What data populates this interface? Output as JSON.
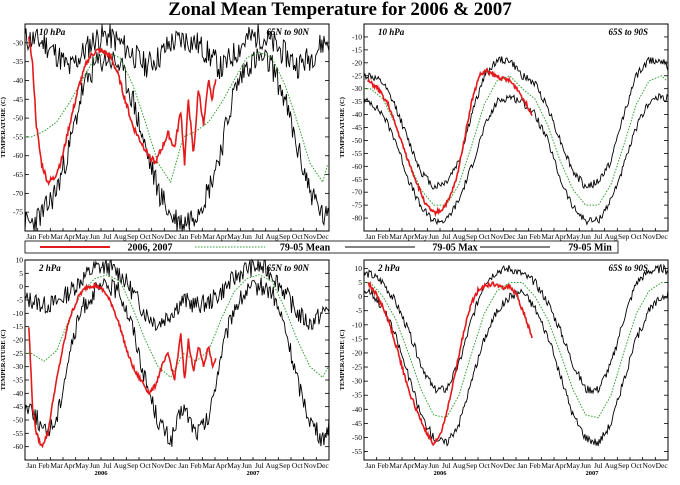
{
  "title": "Zonal Mean Temperature for 2006 & 2007",
  "colors": {
    "series_2006_2007": "#e31a1c",
    "mean": "#2ca02c",
    "max": "#000000",
    "min": "#000000"
  },
  "legend": {
    "placement": "between-rows",
    "entries": [
      {
        "key": "obs",
        "label": "2006, 2007",
        "style": "solid-thick-red"
      },
      {
        "key": "mean",
        "label": "79-05 Mean",
        "style": "dotted-green"
      },
      {
        "key": "max",
        "label": "79-05 Max",
        "style": "solid-black"
      },
      {
        "key": "min",
        "label": "79-05 Min",
        "style": "solid-black"
      }
    ]
  },
  "chart_data": [
    {
      "type": "line",
      "id": "nh10",
      "level": "10 hPa",
      "region": "65N to 90N",
      "ylabel": "TEMPERATURE (C)",
      "ylim": [
        -80,
        -25
      ],
      "yticks": [
        -30,
        -35,
        -40,
        -45,
        -50,
        -55,
        -60,
        -65,
        -70,
        -75
      ],
      "months": [
        "Jan",
        "Feb",
        "Mar",
        "Apr",
        "May",
        "Jun",
        "Jul",
        "Aug",
        "Sep",
        "Oct",
        "Nov",
        "Dec",
        "Jan",
        "Feb",
        "Mar",
        "Apr",
        "May",
        "Jun",
        "Jul",
        "Aug",
        "Sep",
        "Oct",
        "Nov",
        "Dec"
      ],
      "years": [
        "2006",
        "2007"
      ],
      "clim_mean": [
        -55,
        -53.5,
        -51,
        -46,
        -40,
        -34,
        -32.5,
        -34,
        -41,
        -51,
        -62,
        -67,
        -63,
        -61
      ],
      "clim_max": [
        -29,
        -30,
        -33,
        -37,
        -33,
        -29,
        -28,
        -30,
        -33,
        -36,
        -34,
        -30,
        -28,
        -27
      ],
      "clim_min": [
        -78,
        -75,
        -69,
        -58,
        -43,
        -36,
        -34,
        -36,
        -45,
        -58,
        -69,
        -76,
        -77,
        -74
      ],
      "obs_2006_2007": [
        [
          0,
          -28
        ],
        [
          0.3,
          -36
        ],
        [
          0.6,
          -52
        ],
        [
          1.0,
          -62
        ],
        [
          1.5,
          -67
        ],
        [
          2.0,
          -66
        ],
        [
          2.6,
          -61
        ],
        [
          3.2,
          -52
        ],
        [
          4.0,
          -41
        ],
        [
          4.6,
          -35
        ],
        [
          5.0,
          -33
        ],
        [
          5.5,
          -32
        ],
        [
          6.0,
          -32.5
        ],
        [
          6.5,
          -34
        ],
        [
          7.0,
          -38
        ],
        [
          7.6,
          -45
        ],
        [
          8.2,
          -52
        ],
        [
          8.8,
          -56
        ],
        [
          9.5,
          -60
        ],
        [
          10.0,
          -62
        ],
        [
          10.5,
          -58
        ],
        [
          11.0,
          -54
        ],
        [
          11.5,
          -58
        ],
        [
          12.0,
          -48
        ],
        [
          12.3,
          -62
        ],
        [
          12.6,
          -45
        ],
        [
          13.0,
          -60
        ],
        [
          13.4,
          -42
        ],
        [
          13.8,
          -52
        ],
        [
          14.2,
          -40
        ],
        [
          14.5,
          -45
        ],
        [
          14.8,
          -38
        ]
      ]
    },
    {
      "type": "line",
      "id": "sh10",
      "level": "10 hPa",
      "region": "65S to 90S",
      "ylabel": "TEMPERATURE (C)",
      "ylim": [
        -85,
        -5
      ],
      "yticks": [
        -10,
        -15,
        -20,
        -25,
        -30,
        -35,
        -40,
        -45,
        -50,
        -55,
        -60,
        -65,
        -70,
        -75,
        -80
      ],
      "months": [
        "Jan",
        "Feb",
        "Mar",
        "Apr",
        "May",
        "Jun",
        "Jul",
        "Aug",
        "Sep",
        "Oct",
        "Nov",
        "Dec",
        "Jan",
        "Feb",
        "Mar",
        "Apr",
        "May",
        "Jun",
        "Jul",
        "Aug",
        "Sep",
        "Oct",
        "Nov",
        "Dec"
      ],
      "years": [
        "2006",
        "2007"
      ],
      "clim_mean": [
        -30,
        -34,
        -44,
        -58,
        -69,
        -75,
        -75,
        -67,
        -52,
        -36,
        -27,
        -25,
        -28,
        -32
      ],
      "clim_max": [
        -25,
        -28,
        -37,
        -50,
        -62,
        -68,
        -66,
        -58,
        -40,
        -25,
        -19,
        -19,
        -22,
        -26
      ],
      "clim_min": [
        -35,
        -40,
        -50,
        -65,
        -76,
        -81,
        -81,
        -73,
        -60,
        -45,
        -35,
        -33,
        -36,
        -40
      ],
      "obs_2006_2007": [
        [
          0,
          -27
        ],
        [
          0.8,
          -30
        ],
        [
          1.6,
          -36
        ],
        [
          2.4,
          -47
        ],
        [
          3.2,
          -58
        ],
        [
          4.0,
          -68
        ],
        [
          4.6,
          -75
        ],
        [
          5.2,
          -78
        ],
        [
          5.8,
          -77
        ],
        [
          6.4,
          -73
        ],
        [
          7.0,
          -65
        ],
        [
          7.6,
          -50
        ],
        [
          8.2,
          -35
        ],
        [
          8.8,
          -25
        ],
        [
          9.4,
          -23
        ],
        [
          10.0,
          -25
        ],
        [
          10.6,
          -26
        ],
        [
          11.2,
          -27
        ],
        [
          11.8,
          -30
        ],
        [
          12.4,
          -35
        ],
        [
          13.0,
          -40
        ]
      ]
    },
    {
      "type": "line",
      "id": "nh2",
      "level": "2 hPa",
      "region": "65N to 90N",
      "ylabel": "TEMPERATURE (C)",
      "ylim": [
        -65,
        10
      ],
      "yticks": [
        10,
        5,
        0,
        -5,
        -10,
        -15,
        -20,
        -25,
        -30,
        -35,
        -40,
        -45,
        -50,
        -55,
        -60
      ],
      "months": [
        "Jan",
        "Feb",
        "Mar",
        "Apr",
        "May",
        "Jun",
        "Jul",
        "Aug",
        "Sep",
        "Oct",
        "Nov",
        "Dec",
        "Jan",
        "Feb",
        "Mar",
        "Apr",
        "May",
        "Jun",
        "Jul",
        "Aug",
        "Sep",
        "Oct",
        "Nov",
        "Dec"
      ],
      "years": [
        "2006",
        "2007"
      ],
      "clim_mean": [
        -25,
        -28,
        -24,
        -12,
        -2,
        3,
        4.5,
        2,
        -8,
        -20,
        -30,
        -34,
        -30,
        -28
      ],
      "clim_max": [
        -5,
        -7,
        -6,
        -2,
        3,
        7,
        7.5,
        5,
        -2,
        -10,
        -14,
        -10,
        -5,
        -8
      ],
      "clim_min": [
        -45,
        -55,
        -50,
        -25,
        -8,
        -2,
        0.5,
        -2,
        -15,
        -35,
        -50,
        -58,
        -55,
        -50
      ],
      "obs_2006_2007": [
        [
          0,
          -15
        ],
        [
          0.3,
          -45
        ],
        [
          0.6,
          -55
        ],
        [
          1.0,
          -60
        ],
        [
          1.5,
          -55
        ],
        [
          2.0,
          -40
        ],
        [
          2.6,
          -25
        ],
        [
          3.2,
          -12
        ],
        [
          4.0,
          -3
        ],
        [
          4.6,
          0
        ],
        [
          5.0,
          0.5
        ],
        [
          5.5,
          0
        ],
        [
          6.0,
          -2
        ],
        [
          6.6,
          -7
        ],
        [
          7.2,
          -15
        ],
        [
          7.8,
          -25
        ],
        [
          8.4,
          -32
        ],
        [
          9.0,
          -36
        ],
        [
          9.5,
          -40
        ],
        [
          10.0,
          -37
        ],
        [
          10.5,
          -30
        ],
        [
          11.0,
          -25
        ],
        [
          11.5,
          -35
        ],
        [
          12.0,
          -18
        ],
        [
          12.3,
          -35
        ],
        [
          12.6,
          -20
        ],
        [
          13.0,
          -32
        ],
        [
          13.4,
          -22
        ],
        [
          13.8,
          -30
        ],
        [
          14.2,
          -22
        ],
        [
          14.5,
          -30
        ],
        [
          14.8,
          -26
        ]
      ]
    },
    {
      "type": "line",
      "id": "sh2",
      "level": "2 hPa",
      "region": "65S to 90S",
      "ylabel": "TEMPERATURE (C)",
      "ylim": [
        -58,
        13
      ],
      "yticks": [
        10,
        5,
        0,
        -5,
        -10,
        -15,
        -20,
        -25,
        -30,
        -35,
        -40,
        -45,
        -50,
        -55
      ],
      "months": [
        "Jan",
        "Feb",
        "Mar",
        "Apr",
        "May",
        "Jun",
        "Jul",
        "Aug",
        "Sep",
        "Oct",
        "Nov",
        "Dec",
        "Jan",
        "Feb",
        "Mar",
        "Apr",
        "May",
        "Jun",
        "Jul",
        "Aug",
        "Sep",
        "Oct",
        "Nov",
        "Dec"
      ],
      "years": [
        "2006",
        "2007"
      ],
      "clim_mean": [
        5,
        0,
        -8,
        -20,
        -33,
        -42,
        -43,
        -35,
        -20,
        -6,
        2,
        5,
        4,
        0
      ],
      "clim_max": [
        8,
        5,
        -2,
        -12,
        -24,
        -33,
        -33,
        -24,
        -8,
        5,
        9,
        10,
        9,
        5
      ],
      "clim_min": [
        2,
        -4,
        -14,
        -28,
        -42,
        -50,
        -52,
        -45,
        -30,
        -15,
        -5,
        0,
        0,
        -4
      ],
      "obs_2006_2007": [
        [
          0,
          5
        ],
        [
          0.8,
          0
        ],
        [
          1.6,
          -8
        ],
        [
          2.4,
          -20
        ],
        [
          3.2,
          -33
        ],
        [
          4.0,
          -42
        ],
        [
          4.6,
          -48
        ],
        [
          5.2,
          -53
        ],
        [
          5.8,
          -48
        ],
        [
          6.4,
          -38
        ],
        [
          7.0,
          -25
        ],
        [
          7.6,
          -12
        ],
        [
          8.2,
          -2
        ],
        [
          8.8,
          3
        ],
        [
          9.4,
          4
        ],
        [
          10.0,
          4.5
        ],
        [
          10.6,
          3
        ],
        [
          11.2,
          4
        ],
        [
          11.8,
          0
        ],
        [
          12.4,
          -7
        ],
        [
          13.0,
          -15
        ]
      ]
    }
  ]
}
